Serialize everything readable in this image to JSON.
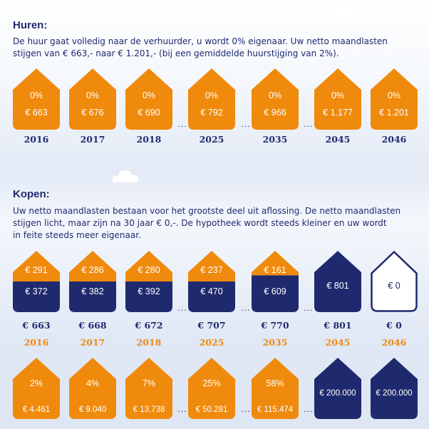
{
  "huren": {
    "title": "Huren:",
    "text_line1": "De huur gaat volledig naar de verhuurder, u wordt 0% eigenaar. Uw netto maandlasten",
    "text_line2": "stijgen van € 663,- naar € 1.201,- (bij een gemiddelde huurstijging van 2%).",
    "houses": [
      {
        "pct": "0%",
        "amount": "€ 663",
        "year": "2016"
      },
      {
        "pct": "0%",
        "amount": "€ 676",
        "year": "2017"
      },
      {
        "pct": "0%",
        "amount": "€ 690",
        "year": "2018"
      },
      {
        "pct": "0%",
        "amount": "€ 792",
        "year": "2025"
      },
      {
        "pct": "0%",
        "amount": "€ 966",
        "year": "2035"
      },
      {
        "pct": "0%",
        "amount": "€ 1.177",
        "year": "2045"
      },
      {
        "pct": "0%",
        "amount": "€ 1.201",
        "year": "2046"
      }
    ],
    "ellipsis": "..."
  },
  "kopen": {
    "title": "Kopen:",
    "text_line1": "Uw netto maandlasten bestaan voor het grootste deel uit aflossing. De netto maandlasten",
    "text_line2": "stijgen licht, maar zijn na 30 jaar € 0,-. De hypotheek wordt steeds kleiner en uw wordt",
    "text_line3": "in feite steeds meer eigenaar.",
    "houses": [
      {
        "top": "€ 291",
        "bottom": "€ 372",
        "total": "€ 663",
        "year": "2016"
      },
      {
        "top": "€ 286",
        "bottom": "€ 382",
        "total": "€ 668",
        "year": "2017"
      },
      {
        "top": "€ 280",
        "bottom": "€ 392",
        "total": "€ 672",
        "year": "2018"
      },
      {
        "top": "€ 237",
        "bottom": "€ 470",
        "total": "€ 707",
        "year": "2025"
      },
      {
        "top": "€ 161",
        "bottom": "€ 609",
        "total": "€ 770",
        "year": "2035"
      },
      {
        "top": "",
        "bottom": "€ 801",
        "total": "€ 801",
        "year": "2045"
      },
      {
        "top": "",
        "bottom": "€ 0",
        "total": "€ 0",
        "year": "2046"
      }
    ],
    "ownership": [
      {
        "pct": "2%",
        "amount": "€ 4.461"
      },
      {
        "pct": "4%",
        "amount": "€ 9.040"
      },
      {
        "pct": "7%",
        "amount": "€ 13.738"
      },
      {
        "pct": "25%",
        "amount": "€ 50.281"
      },
      {
        "pct": "58%",
        "amount": "€ 115.474"
      },
      {
        "pct": "",
        "amount": "€ 200.000"
      },
      {
        "pct": "",
        "amount": "€ 200.000"
      }
    ],
    "ellipsis": "..."
  },
  "colors": {
    "orange": "#f08a0c",
    "navy": "#1f2a6e",
    "white": "#ffffff"
  }
}
